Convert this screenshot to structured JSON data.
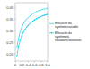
{
  "chart_data": {
    "type": "line",
    "x": [
      0.05,
      0.1,
      0.15,
      0.2,
      0.25,
      0.3,
      0.35,
      0.4,
      0.45,
      0.5,
      0.55,
      0.6,
      0.65,
      0.7,
      0.75,
      0.8,
      0.85,
      0.9,
      0.95,
      1.0
    ],
    "series": [
      {
        "name": "Efficacité du\nsystème variable",
        "color": "#00d0f0",
        "line_style": "solid",
        "values": [
          0.225,
          0.268,
          0.295,
          0.315,
          0.33,
          0.341,
          0.35,
          0.357,
          0.363,
          0.368,
          0.373,
          0.377,
          0.381,
          0.384,
          0.387,
          0.389,
          0.391,
          0.393,
          0.395,
          0.397
        ]
      },
      {
        "name": "Efficacité du\nsystème à\nvariation constante",
        "color": "#00d0f0",
        "line_style": "solid",
        "marker": "point",
        "values": [
          0.19,
          0.232,
          0.258,
          0.278,
          0.293,
          0.305,
          0.315,
          0.323,
          0.33,
          0.336,
          0.342,
          0.347,
          0.351,
          0.355,
          0.358,
          0.361,
          0.364,
          0.366,
          0.368,
          0.37
        ]
      }
    ],
    "xlim": [
      0.0,
      1.0
    ],
    "ylim": [
      0.17,
      0.42
    ],
    "xticks": [
      0,
      0.2,
      0.4,
      0.6,
      0.8,
      {
        "value": 1.0,
        "label": "1.0"
      }
    ],
    "yticks": [
      {
        "value": 0.2,
        "label": "0.20"
      },
      0.25,
      {
        "value": 0.3,
        "label": "0.30"
      },
      0.35,
      {
        "value": 0.4,
        "label": "0.40"
      }
    ],
    "grid": false,
    "legend": "right"
  }
}
